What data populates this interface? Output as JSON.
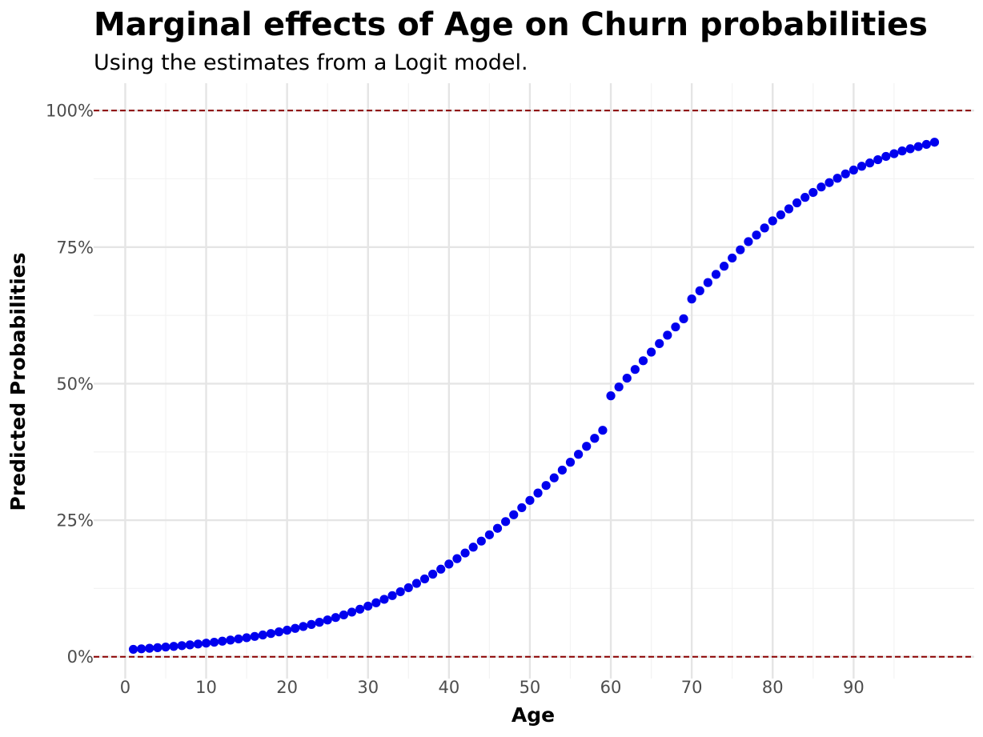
{
  "chart_data": {
    "type": "scatter",
    "title": "Marginal effects of Age on Churn probabilities",
    "subtitle": "Using the estimates from a Logit model.",
    "xlabel": "Age",
    "ylabel": "Predicted Probabilities",
    "xlim": [
      -3.9,
      104.9
    ],
    "ylim": [
      -0.04,
      1.05
    ],
    "x_ticks": [
      0,
      10,
      20,
      30,
      40,
      50,
      60,
      70,
      80,
      90
    ],
    "x_tick_labels": [
      "0",
      "10",
      "20",
      "30",
      "40",
      "50",
      "60",
      "70",
      "80",
      "90"
    ],
    "y_ticks": [
      0,
      0.25,
      0.5,
      0.75,
      1.0
    ],
    "y_tick_labels": [
      "0%",
      "25%",
      "50%",
      "75%",
      "100%"
    ],
    "reference_lines": [
      0,
      1
    ],
    "grid": true,
    "point_color": "#0000ee",
    "reference_line_color": "#8b0000",
    "series": [
      {
        "x": [
          1,
          2,
          3,
          4,
          5,
          6,
          7,
          8,
          9,
          10,
          11,
          12,
          13,
          14,
          15,
          16,
          17,
          18,
          19,
          20,
          21,
          22,
          23,
          24,
          25,
          26,
          27,
          28,
          29,
          30,
          31,
          32,
          33,
          34,
          35,
          36,
          37,
          38,
          39,
          40,
          41,
          42,
          43,
          44,
          45,
          46,
          47,
          48,
          49,
          50,
          51,
          52,
          53,
          54,
          55,
          56,
          57,
          58,
          59,
          60,
          61,
          62,
          63,
          64,
          65,
          66,
          67,
          68,
          69,
          70,
          71,
          72,
          73,
          74,
          75,
          76,
          77,
          78,
          79,
          80,
          81,
          82,
          83,
          84,
          85,
          86,
          87,
          88,
          89,
          90,
          91,
          92,
          93,
          94,
          95,
          96,
          97,
          98,
          99,
          100
        ],
        "values": [
          0.0136,
          0.0145,
          0.0155,
          0.0166,
          0.0178,
          0.019,
          0.0203,
          0.0217,
          0.0233,
          0.0249,
          0.0266,
          0.0285,
          0.0305,
          0.0326,
          0.0348,
          0.0372,
          0.0398,
          0.0425,
          0.0455,
          0.0486,
          0.0519,
          0.0554,
          0.0591,
          0.0631,
          0.0673,
          0.0718,
          0.0766,
          0.0817,
          0.087,
          0.0927,
          0.0988,
          0.1051,
          0.1119,
          0.119,
          0.1264,
          0.1343,
          0.1425,
          0.1512,
          0.1603,
          0.1697,
          0.1796,
          0.1899,
          0.2006,
          0.2117,
          0.2232,
          0.2351,
          0.2474,
          0.26,
          0.2729,
          0.2862,
          0.2997,
          0.3135,
          0.3275,
          0.3417,
          0.3561,
          0.3706,
          0.3852,
          0.3999,
          0.4146,
          0.4777,
          0.4939,
          0.51,
          0.526,
          0.5419,
          0.5577,
          0.5733,
          0.5887,
          0.6038,
          0.6187,
          0.655,
          0.67,
          0.685,
          0.7,
          0.715,
          0.73,
          0.745,
          0.76,
          0.772,
          0.785,
          0.798,
          0.809,
          0.82,
          0.831,
          0.841,
          0.85,
          0.86,
          0.868,
          0.876,
          0.884,
          0.891,
          0.898,
          0.904,
          0.91,
          0.916,
          0.921,
          0.926,
          0.93,
          0.934,
          0.938,
          0.942
        ]
      }
    ]
  }
}
